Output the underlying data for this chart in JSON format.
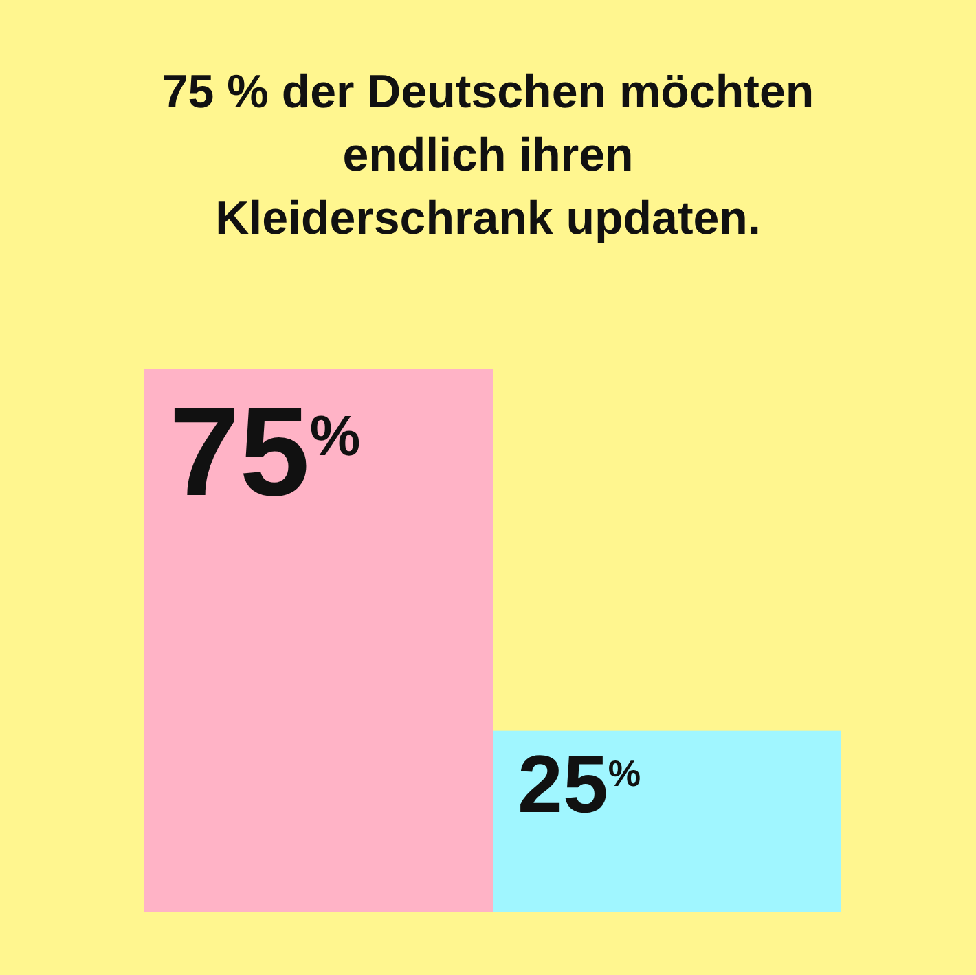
{
  "chart_data": {
    "type": "bar",
    "title": "75 % der Deutschen möchten endlich ihren Kleiderschrank updaten.",
    "categories": [
      null,
      null
    ],
    "values": [
      75,
      25
    ],
    "colors": [
      "#ffb3c6",
      "#a0f6ff"
    ],
    "value_labels": [
      "75$^{%}$",
      "25$^{%}$"
    ]
  }
}
